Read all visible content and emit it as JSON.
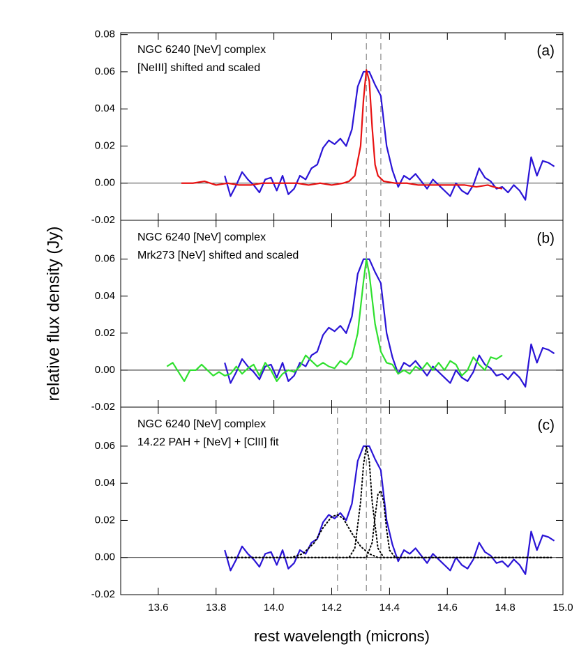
{
  "xlabel": "rest wavelength (microns)",
  "ylabel": "relative flux density (Jy)",
  "chart_data": [
    {
      "type": "line",
      "panel_label": "(a)",
      "xlim": [
        13.47,
        15.0
      ],
      "ylim": [
        -0.02,
        0.081
      ],
      "xticks": [
        13.6,
        13.8,
        {
          "value": 14,
          "label": "14.0"
        },
        14.2,
        14.4,
        14.6,
        14.8,
        {
          "value": 15,
          "label": "15.0"
        }
      ],
      "xtick_labels": false,
      "yticks": [
        -0.02,
        {
          "value": 0,
          "label": "0.00"
        },
        0.02,
        0.04,
        0.06,
        0.08
      ],
      "vlines": [
        14.32,
        14.37
      ],
      "hlines": [
        0
      ],
      "series": [
        {
          "name": "NGC 6240 [NeV] complex",
          "color": "#2a14d6",
          "x": [
            13.83,
            13.85,
            13.87,
            13.89,
            13.91,
            13.93,
            13.95,
            13.97,
            13.99,
            14.01,
            14.03,
            14.05,
            14.07,
            14.09,
            14.11,
            14.13,
            14.15,
            14.17,
            14.19,
            14.21,
            14.23,
            14.25,
            14.27,
            14.29,
            14.31,
            14.33,
            14.35,
            14.37,
            14.39,
            14.41,
            14.43,
            14.45,
            14.47,
            14.49,
            14.51,
            14.53,
            14.55,
            14.57,
            14.59,
            14.61,
            14.63,
            14.65,
            14.67,
            14.69,
            14.71,
            14.73,
            14.75,
            14.77,
            14.79,
            14.81,
            14.83,
            14.85,
            14.87,
            14.89,
            14.91,
            14.93,
            14.95,
            14.97
          ],
          "values": [
            0.004,
            -0.007,
            -0.001,
            0.006,
            0.002,
            -0.001,
            -0.005,
            0.002,
            0.003,
            -0.004,
            0.004,
            -0.006,
            -0.003,
            0.004,
            0.002,
            0.008,
            0.01,
            0.019,
            0.023,
            0.021,
            0.024,
            0.02,
            0.029,
            0.052,
            0.06,
            0.06,
            0.053,
            0.047,
            0.02,
            0.007,
            -0.002,
            0.004,
            0.002,
            0.005,
            0.001,
            -0.003,
            0.002,
            -0.001,
            -0.004,
            -0.007,
            0,
            -0.004,
            -0.006,
            -0.001,
            0.008,
            0.003,
            0.001,
            -0.003,
            -0.002,
            -0.005,
            -0.001,
            -0.004,
            -0.009,
            0.014,
            0.004,
            0.012,
            0.011,
            0.009
          ]
        },
        {
          "name": "[NeIII] shifted and scaled",
          "color": "#e81212",
          "x": [
            13.68,
            13.72,
            13.76,
            13.8,
            13.84,
            13.88,
            13.92,
            13.96,
            14.0,
            14.04,
            14.08,
            14.12,
            14.16,
            14.2,
            14.24,
            14.26,
            14.28,
            14.3,
            14.31,
            14.32,
            14.33,
            14.34,
            14.35,
            14.36,
            14.38,
            14.42,
            14.46,
            14.5,
            14.54,
            14.58,
            14.62,
            14.66,
            14.7,
            14.74,
            14.76,
            14.79
          ],
          "values": [
            0,
            0,
            0.001,
            -0.001,
            0,
            -0.001,
            -0.001,
            0,
            0,
            0,
            0,
            -0.001,
            0,
            -0.001,
            0,
            0.001,
            0.004,
            0.02,
            0.045,
            0.061,
            0.055,
            0.03,
            0.01,
            0.004,
            0.001,
            0,
            0,
            -0.001,
            -0.001,
            -0.001,
            -0.001,
            -0.001,
            -0.002,
            -0.001,
            -0.002,
            -0.003
          ]
        }
      ]
    },
    {
      "type": "line",
      "panel_label": "(b)",
      "xlim": [
        13.47,
        15.0
      ],
      "ylim": [
        -0.02,
        0.081
      ],
      "xticks": [
        13.6,
        13.8,
        {
          "value": 14,
          "label": "14.0"
        },
        14.2,
        14.4,
        14.6,
        14.8,
        {
          "value": 15,
          "label": "15.0"
        }
      ],
      "xtick_labels": false,
      "yticks": [
        -0.02,
        {
          "value": 0,
          "label": "0.00"
        },
        0.02,
        0.04,
        0.06
      ],
      "vlines": [
        14.32,
        14.37
      ],
      "hlines": [
        0
      ],
      "series": [
        {
          "name": "NGC 6240 [NeV] complex",
          "color": "#2a14d6",
          "x": [
            13.83,
            13.85,
            13.87,
            13.89,
            13.91,
            13.93,
            13.95,
            13.97,
            13.99,
            14.01,
            14.03,
            14.05,
            14.07,
            14.09,
            14.11,
            14.13,
            14.15,
            14.17,
            14.19,
            14.21,
            14.23,
            14.25,
            14.27,
            14.29,
            14.31,
            14.33,
            14.35,
            14.37,
            14.39,
            14.41,
            14.43,
            14.45,
            14.47,
            14.49,
            14.51,
            14.53,
            14.55,
            14.57,
            14.59,
            14.61,
            14.63,
            14.65,
            14.67,
            14.69,
            14.71,
            14.73,
            14.75,
            14.77,
            14.79,
            14.81,
            14.83,
            14.85,
            14.87,
            14.89,
            14.91,
            14.93,
            14.95,
            14.97
          ],
          "values": [
            0.004,
            -0.007,
            -0.001,
            0.006,
            0.002,
            -0.001,
            -0.005,
            0.002,
            0.003,
            -0.004,
            0.004,
            -0.006,
            -0.003,
            0.004,
            0.002,
            0.008,
            0.01,
            0.019,
            0.023,
            0.021,
            0.024,
            0.02,
            0.029,
            0.052,
            0.06,
            0.06,
            0.053,
            0.047,
            0.02,
            0.007,
            -0.002,
            0.004,
            0.002,
            0.005,
            0.001,
            -0.003,
            0.002,
            -0.001,
            -0.004,
            -0.007,
            0,
            -0.004,
            -0.006,
            -0.001,
            0.008,
            0.003,
            0.001,
            -0.003,
            -0.002,
            -0.005,
            -0.001,
            -0.004,
            -0.009,
            0.014,
            0.004,
            0.012,
            0.011,
            0.009
          ]
        },
        {
          "name": "Mrk273 [NeV] shifted and scaled",
          "color": "#2fe02f",
          "x": [
            13.63,
            13.65,
            13.67,
            13.69,
            13.71,
            13.73,
            13.75,
            13.77,
            13.79,
            13.81,
            13.83,
            13.85,
            13.87,
            13.89,
            13.91,
            13.93,
            13.95,
            13.97,
            13.99,
            14.01,
            14.03,
            14.05,
            14.07,
            14.09,
            14.11,
            14.13,
            14.15,
            14.17,
            14.19,
            14.21,
            14.23,
            14.25,
            14.27,
            14.29,
            14.31,
            14.32,
            14.33,
            14.35,
            14.37,
            14.39,
            14.41,
            14.43,
            14.45,
            14.47,
            14.49,
            14.51,
            14.53,
            14.55,
            14.57,
            14.59,
            14.61,
            14.63,
            14.65,
            14.67,
            14.69,
            14.71,
            14.73,
            14.75,
            14.77,
            14.79
          ],
          "values": [
            0.002,
            0.004,
            -0.001,
            -0.006,
            0,
            0,
            0.003,
            0,
            -0.003,
            -0.001,
            -0.003,
            -0.002,
            0.002,
            -0.002,
            0.001,
            0.003,
            -0.003,
            0.004,
            0,
            -0.006,
            -0.002,
            0,
            -0.001,
            0.002,
            0.008,
            0.005,
            0.002,
            0.004,
            0.002,
            0.001,
            0.005,
            0.003,
            0.007,
            0.02,
            0.048,
            0.06,
            0.052,
            0.025,
            0.01,
            0.004,
            0.003,
            -0.002,
            0,
            -0.002,
            0.002,
            0,
            0.004,
            0,
            0.004,
            0,
            0.005,
            0.003,
            -0.003,
            0,
            0.007,
            0.003,
            0,
            0.007,
            0.006,
            0.008
          ]
        }
      ]
    },
    {
      "type": "line",
      "panel_label": "(c)",
      "xlim": [
        13.47,
        15.0
      ],
      "ylim": [
        -0.02,
        0.081
      ],
      "xticks": [
        13.6,
        13.8,
        {
          "value": 14,
          "label": "14.0"
        },
        14.2,
        14.4,
        14.6,
        14.8,
        {
          "value": 15,
          "label": "15.0"
        }
      ],
      "xtick_labels": true,
      "yticks": [
        -0.02,
        {
          "value": 0,
          "label": "0.00"
        },
        0.02,
        0.04,
        0.06
      ],
      "vlines": [
        14.22,
        14.32,
        14.37
      ],
      "hlines": [
        0
      ],
      "series": [
        {
          "name": "NGC 6240 [NeV] complex",
          "color": "#2a14d6",
          "x": [
            13.83,
            13.85,
            13.87,
            13.89,
            13.91,
            13.93,
            13.95,
            13.97,
            13.99,
            14.01,
            14.03,
            14.05,
            14.07,
            14.09,
            14.11,
            14.13,
            14.15,
            14.17,
            14.19,
            14.21,
            14.23,
            14.25,
            14.27,
            14.29,
            14.31,
            14.33,
            14.35,
            14.37,
            14.39,
            14.41,
            14.43,
            14.45,
            14.47,
            14.49,
            14.51,
            14.53,
            14.55,
            14.57,
            14.59,
            14.61,
            14.63,
            14.65,
            14.67,
            14.69,
            14.71,
            14.73,
            14.75,
            14.77,
            14.79,
            14.81,
            14.83,
            14.85,
            14.87,
            14.89,
            14.91,
            14.93,
            14.95,
            14.97
          ],
          "values": [
            0.004,
            -0.007,
            -0.001,
            0.006,
            0.002,
            -0.001,
            -0.005,
            0.002,
            0.003,
            -0.004,
            0.004,
            -0.006,
            -0.003,
            0.004,
            0.002,
            0.008,
            0.01,
            0.019,
            0.023,
            0.021,
            0.024,
            0.02,
            0.029,
            0.052,
            0.06,
            0.06,
            0.053,
            0.047,
            0.02,
            0.007,
            -0.002,
            0.004,
            0.002,
            0.005,
            0.001,
            -0.003,
            0.002,
            -0.001,
            -0.004,
            -0.007,
            0,
            -0.004,
            -0.006,
            -0.001,
            0.008,
            0.003,
            0.001,
            -0.003,
            -0.002,
            -0.005,
            -0.001,
            -0.004,
            -0.009,
            0.014,
            0.004,
            0.012,
            0.011,
            0.009
          ]
        },
        {
          "name": "14.22 PAH + [NeV] + [ClII] fit",
          "color": "#000000",
          "style": "dotted",
          "x": [
            13.84,
            14.06,
            14.1,
            14.14,
            14.17,
            14.2,
            14.22,
            14.24,
            14.27,
            14.3,
            14.33,
            14.36,
            14.96
          ],
          "values": [
            0,
            0,
            0.002,
            0.008,
            0.016,
            0.022,
            0.023,
            0.021,
            0.013,
            0.006,
            0.002,
            0,
            0
          ]
        },
        {
          "color": "#000000",
          "style": "dotted",
          "x": [
            13.84,
            14.26,
            14.28,
            14.3,
            14.31,
            14.32,
            14.33,
            14.34,
            14.36,
            14.38,
            14.96
          ],
          "values": [
            0,
            0,
            0.005,
            0.03,
            0.05,
            0.06,
            0.052,
            0.03,
            0.005,
            0,
            0
          ]
        },
        {
          "color": "#000000",
          "style": "dotted",
          "x": [
            13.84,
            14.32,
            14.34,
            14.35,
            14.36,
            14.37,
            14.38,
            14.39,
            14.4,
            14.42,
            14.96
          ],
          "values": [
            0,
            0,
            0.008,
            0.022,
            0.034,
            0.036,
            0.03,
            0.015,
            0.004,
            0,
            0
          ]
        }
      ]
    }
  ]
}
